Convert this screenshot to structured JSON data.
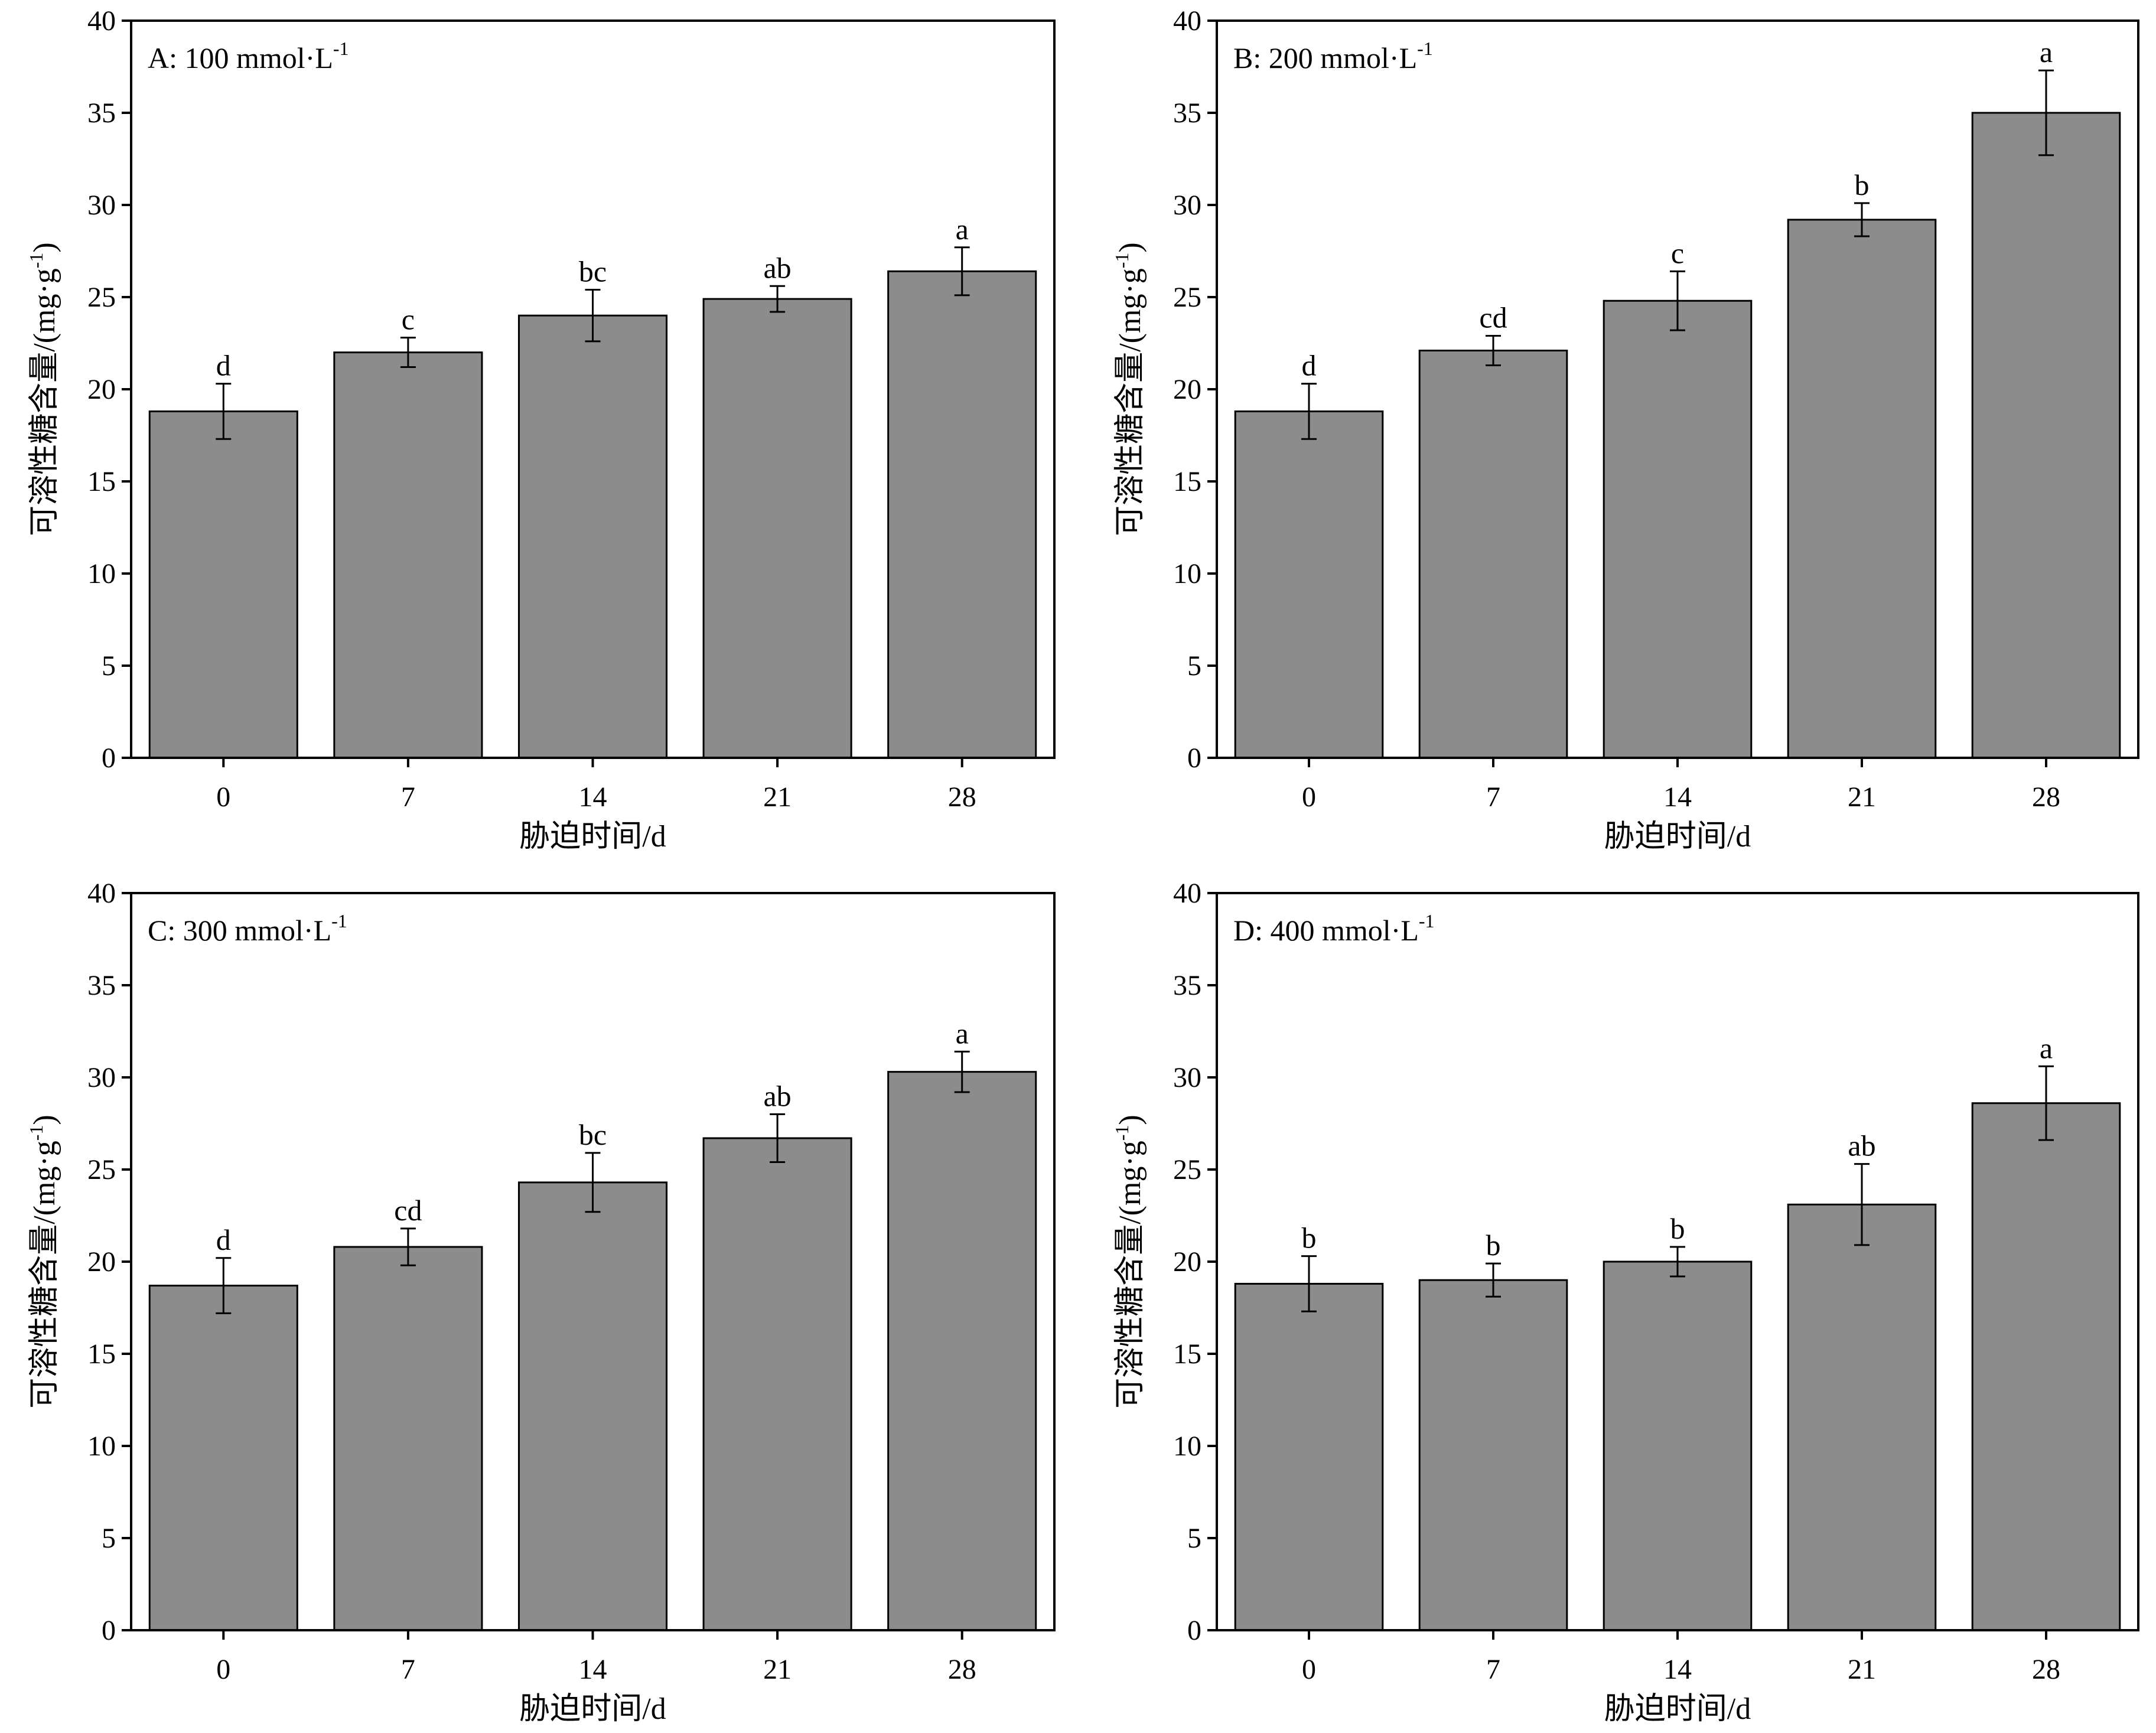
{
  "colors": {
    "bar_fill": "#8c8c8c",
    "bar_stroke": "#000000",
    "background": "#ffffff"
  },
  "chart_data": [
    {
      "type": "bar",
      "title": "A: 100 mmol·L",
      "title_sup": "-1",
      "xlabel": "胁迫时间/d",
      "ylabel": "可溶性糖含量/(mg·g",
      "ylabel_sup": "-1",
      "ylabel_end": ")",
      "ylim": [
        0,
        40
      ],
      "yticks": [
        0,
        5,
        10,
        15,
        20,
        25,
        30,
        35,
        40
      ],
      "categories": [
        "0",
        "7",
        "14",
        "21",
        "28"
      ],
      "values": [
        18.8,
        22.0,
        24.0,
        24.9,
        26.4
      ],
      "errors": [
        1.5,
        0.8,
        1.4,
        0.7,
        1.3
      ],
      "significance": [
        "d",
        "c",
        "bc",
        "ab",
        "a"
      ],
      "grid": false,
      "legend": "none"
    },
    {
      "type": "bar",
      "title": "B: 200 mmol·L",
      "title_sup": "-1",
      "xlabel": "胁迫时间/d",
      "ylabel": "可溶性糖含量/(mg·g",
      "ylabel_sup": "-1",
      "ylabel_end": ")",
      "ylim": [
        0,
        40
      ],
      "yticks": [
        0,
        5,
        10,
        15,
        20,
        25,
        30,
        35,
        40
      ],
      "categories": [
        "0",
        "7",
        "14",
        "21",
        "28"
      ],
      "values": [
        18.8,
        22.1,
        24.8,
        29.2,
        35.0
      ],
      "errors": [
        1.5,
        0.8,
        1.6,
        0.9,
        2.3
      ],
      "significance": [
        "d",
        "cd",
        "c",
        "b",
        "a"
      ],
      "grid": false,
      "legend": "none"
    },
    {
      "type": "bar",
      "title": "C: 300 mmol·L",
      "title_sup": "-1",
      "xlabel": "胁迫时间/d",
      "ylabel": "可溶性糖含量/(mg·g",
      "ylabel_sup": "-1",
      "ylabel_end": ")",
      "ylim": [
        0,
        40
      ],
      "yticks": [
        0,
        5,
        10,
        15,
        20,
        25,
        30,
        35,
        40
      ],
      "categories": [
        "0",
        "7",
        "14",
        "21",
        "28"
      ],
      "values": [
        18.7,
        20.8,
        24.3,
        26.7,
        30.3
      ],
      "errors": [
        1.5,
        1.0,
        1.6,
        1.3,
        1.1
      ],
      "significance": [
        "d",
        "cd",
        "bc",
        "ab",
        "a"
      ],
      "grid": false,
      "legend": "none"
    },
    {
      "type": "bar",
      "title": "D: 400 mmol·L",
      "title_sup": "-1",
      "xlabel": "胁迫时间/d",
      "ylabel": "可溶性糖含量/(mg·g",
      "ylabel_sup": "-1",
      "ylabel_end": ")",
      "ylim": [
        0,
        40
      ],
      "yticks": [
        0,
        5,
        10,
        15,
        20,
        25,
        30,
        35,
        40
      ],
      "categories": [
        "0",
        "7",
        "14",
        "21",
        "28"
      ],
      "values": [
        18.8,
        19.0,
        20.0,
        23.1,
        28.6
      ],
      "errors": [
        1.5,
        0.9,
        0.8,
        2.2,
        2.0
      ],
      "significance": [
        "b",
        "b",
        "b",
        "ab",
        "a"
      ],
      "grid": false,
      "legend": "none"
    }
  ]
}
